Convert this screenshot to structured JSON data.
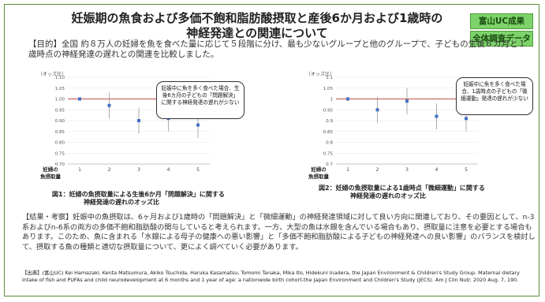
{
  "title_line1": "妊娠期の魚食および多価不飽和脂肪酸摂取と産後6か月および1歳時の",
  "title_line2": "神経発達との関連について",
  "badges": [
    "富山UC成果",
    "全体調査データ"
  ],
  "purpose": "【目的】全国 約８万人の妊婦を魚を食べた量に応じて５段階に分け、最も少ないグループと他のグループで、子どもの生後６カ月と１歳時点の神経発達の遅れとの関連を比較しました。",
  "chart_data": [
    {
      "type": "scatter",
      "ylabel": "（オッズ比）",
      "xlabel": "妊婦の魚摂取量",
      "categories": [
        "1",
        "2",
        "3",
        "4",
        "5"
      ],
      "values": [
        1.0,
        0.97,
        0.9,
        0.91,
        0.88
      ],
      "ci_low": [
        1.0,
        0.91,
        0.84,
        0.85,
        0.82
      ],
      "ci_high": [
        1.0,
        1.03,
        0.96,
        0.97,
        0.93
      ],
      "ylim": [
        0.7,
        1.1
      ],
      "yticks": [
        "1.10",
        "1.05",
        "1.00",
        "0.95",
        "0.90",
        "0.85",
        "0.80",
        "0.75",
        "0.70"
      ],
      "callout": "妊娠中に魚を多く食べた場合、生後6カ月の子どもの「問題解決」に関する神経発達の遅れが少ない",
      "caption_line1": "図1：妊婦の魚摂取量による生後6か月「問題解決」に関する",
      "caption_line2": "神経発達の遅れのオッズ比"
    },
    {
      "type": "scatter",
      "ylabel": "（オッズ比）",
      "xlabel": "妊婦の魚摂取量",
      "categories": [
        "1",
        "2",
        "3",
        "4",
        "5"
      ],
      "values": [
        1.0,
        0.95,
        0.99,
        0.92,
        0.91
      ],
      "ci_low": [
        1.0,
        0.89,
        0.93,
        0.86,
        0.85
      ],
      "ci_high": [
        1.0,
        1.01,
        1.05,
        0.98,
        0.97
      ],
      "ylim": [
        0.7,
        1.1
      ],
      "yticks": [
        "1.1",
        "1.05",
        "1",
        "0.95",
        "0.9",
        "0.85",
        "0.8",
        "0.75",
        "0.7"
      ],
      "callout": "妊娠中に魚を多く食べた場合、1歳時点の子どもの「微細運動」発達の遅れが少ない",
      "caption_line1": "図2：妊婦の魚摂取量による1歳時点「微細運動」に関する",
      "caption_line2": "神経発達の遅れのオッズ比"
    }
  ],
  "results": "【結果・考察】妊娠中の魚摂取は、6ヶ月および1歳時の「問題解決」と「微細運動」の神経発達領域に対して良い方向に関連しており、その要因として、n-3系およびn-6系の両方の多価不飽和脂肪酸の関与していると考えられます。一方、大型の魚は水銀を含んでいる場合もあり、摂取量に注意を必要とする場合もあります。このため、魚に含まれる「水銀による母子の健康への悪い影響」と「多価不飽和脂肪酸による子どもの神経発達への良い影響」のバランスを検討して、摂取する魚の種類と適切な摂取量について、更によく調べていく必要があります。",
  "source": "【出典】(富山UC) Kei Hamazaki, Kenta Matsumura, Akiko Tsuchida, Haruka Kasamatsu, Tomomi Tanaka, Mika Ito, Hidekuni Inadera, the Japan Environment & Children's Study Group. Maternal dietary intake of fish and PUFAs and child neurodevelopment at 6 months and 1 year of age: a nationwide birth cohort-the Japan Environment and Children's Study (JECS). Am J Clin Nutr. 2020 Aug. 7, 190.",
  "colors": {
    "point": "#4472c4",
    "refline": "#c0504d",
    "badge": "#7dd36a"
  }
}
